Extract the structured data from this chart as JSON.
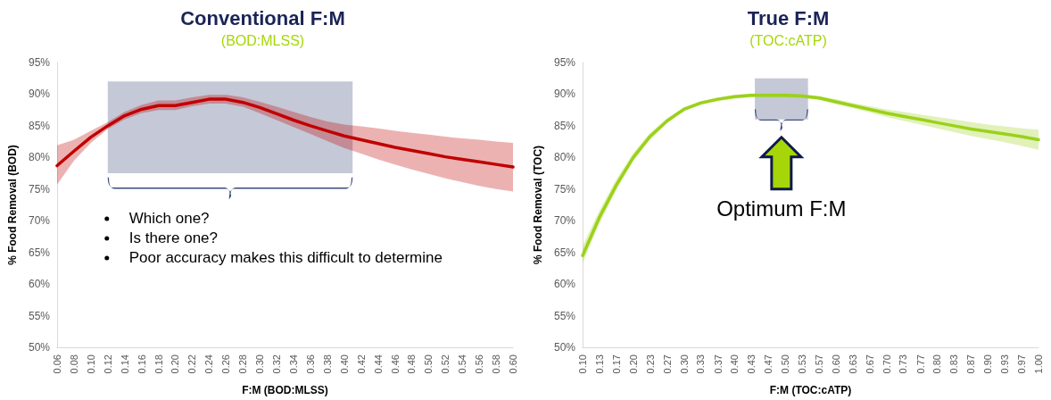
{
  "chart_data": [
    {
      "type": "line",
      "title": "Conventional F:M",
      "subtitle": "(BOD:MLSS)",
      "xlabel": "F:M (BOD:MLSS)",
      "ylabel": "% Food Removal (BOD)",
      "marker": "none",
      "x": [
        0.06,
        0.08,
        0.1,
        0.12,
        0.14,
        0.16,
        0.18,
        0.2,
        0.22,
        0.24,
        0.26,
        0.28,
        0.3,
        0.32,
        0.34,
        0.36,
        0.38,
        0.4,
        0.42,
        0.44,
        0.46,
        0.48,
        0.5,
        0.52,
        0.54,
        0.56,
        0.58,
        0.6
      ],
      "series": [
        {
          "color": "#c00000",
          "values": [
            78.7,
            81.0,
            83.2,
            85.0,
            86.6,
            87.6,
            88.2,
            88.2,
            88.7,
            89.2,
            89.2,
            88.7,
            87.9,
            86.9,
            85.9,
            85.0,
            84.2,
            83.4,
            82.8,
            82.2,
            81.6,
            81.1,
            80.6,
            80.1,
            79.7,
            79.3,
            78.9,
            78.5
          ],
          "lower": [
            75.7,
            79.5,
            82.3,
            84.5,
            86.0,
            87.0,
            87.5,
            87.5,
            88.1,
            88.5,
            88.5,
            88.0,
            87.0,
            85.9,
            84.8,
            83.7,
            82.6,
            81.5,
            80.6,
            79.7,
            78.9,
            78.1,
            77.4,
            76.7,
            76.1,
            75.5,
            75.0,
            74.6
          ],
          "upper": [
            81.9,
            82.8,
            84.2,
            85.6,
            87.2,
            88.3,
            89.0,
            89.0,
            89.5,
            89.9,
            89.9,
            89.5,
            88.8,
            88.0,
            87.2,
            86.4,
            85.7,
            85.2,
            84.9,
            84.6,
            84.2,
            83.9,
            83.6,
            83.3,
            83.0,
            82.8,
            82.5,
            82.3
          ]
        }
      ],
      "xlim": [
        0.06,
        0.6
      ],
      "xticks": [
        {
          "value": 0.06,
          "label": "0.06"
        },
        {
          "value": 0.08,
          "label": "0.08"
        },
        {
          "value": 0.1,
          "label": "0.10"
        },
        {
          "value": 0.12,
          "label": "0.12"
        },
        {
          "value": 0.14,
          "label": "0.14"
        },
        {
          "value": 0.16,
          "label": "0.16"
        },
        {
          "value": 0.18,
          "label": "0.18"
        },
        {
          "value": 0.2,
          "label": "0.20"
        },
        {
          "value": 0.22,
          "label": "0.22"
        },
        {
          "value": 0.24,
          "label": "0.24"
        },
        {
          "value": 0.26,
          "label": "0.26"
        },
        {
          "value": 0.28,
          "label": "0.28"
        },
        {
          "value": 0.3,
          "label": "0.30"
        },
        {
          "value": 0.32,
          "label": "0.32"
        },
        {
          "value": 0.34,
          "label": "0.34"
        },
        {
          "value": 0.36,
          "label": "0.36"
        },
        {
          "value": 0.38,
          "label": "0.38"
        },
        {
          "value": 0.4,
          "label": "0.40"
        },
        {
          "value": 0.42,
          "label": "0.42"
        },
        {
          "value": 0.44,
          "label": "0.44"
        },
        {
          "value": 0.46,
          "label": "0.46"
        },
        {
          "value": 0.48,
          "label": "0.48"
        },
        {
          "value": 0.5,
          "label": "0.50"
        },
        {
          "value": 0.52,
          "label": "0.52"
        },
        {
          "value": 0.54,
          "label": "0.54"
        },
        {
          "value": 0.56,
          "label": "0.56"
        },
        {
          "value": 0.58,
          "label": "0.58"
        },
        {
          "value": 0.6,
          "label": "0.60"
        }
      ],
      "ylim": [
        50,
        95
      ],
      "yticks": [
        {
          "value": 50,
          "label": "50%"
        },
        {
          "value": 55,
          "label": "55%"
        },
        {
          "value": 60,
          "label": "60%"
        },
        {
          "value": 65,
          "label": "65%"
        },
        {
          "value": 70,
          "label": "70%"
        },
        {
          "value": 75,
          "label": "75%"
        },
        {
          "value": 80,
          "label": "80%"
        },
        {
          "value": 85,
          "label": "85%"
        },
        {
          "value": 90,
          "label": "90%"
        },
        {
          "value": 95,
          "label": "95%"
        }
      ],
      "bands": [
        {
          "axis": "x",
          "from": 0.12,
          "to": 0.41,
          "color": "#c5c8d6"
        }
      ],
      "annotations": [
        "Which one?",
        "Is there one?",
        "Poor accuracy makes this difficult to determine"
      ]
    },
    {
      "type": "line",
      "title": "True F:M",
      "subtitle": "(TOC:cATP)",
      "xlabel": "F:M (TOC:cATP)",
      "ylabel": "% Food Removal (TOC)",
      "marker": "none",
      "x": [
        0.1,
        0.133,
        0.167,
        0.2,
        0.233,
        0.267,
        0.3,
        0.333,
        0.367,
        0.4,
        0.433,
        0.467,
        0.5,
        0.533,
        0.567,
        0.6,
        0.633,
        0.667,
        0.7,
        0.733,
        0.767,
        0.8,
        0.833,
        0.867,
        0.9,
        0.933,
        0.967,
        1.0
      ],
      "series": [
        {
          "color": "#9bd11a",
          "values": [
            64.5,
            70.5,
            75.7,
            80.0,
            83.3,
            85.8,
            87.6,
            88.6,
            89.2,
            89.6,
            89.8,
            89.8,
            89.8,
            89.7,
            89.4,
            88.8,
            88.2,
            87.6,
            87.0,
            86.5,
            86.0,
            85.5,
            85.0,
            84.5,
            84.1,
            83.7,
            83.3,
            82.8
          ],
          "lower": [
            63.3,
            69.5,
            74.9,
            79.4,
            82.8,
            85.4,
            87.3,
            88.3,
            88.9,
            89.3,
            89.5,
            89.5,
            89.5,
            89.4,
            89.1,
            88.4,
            87.8,
            87.1,
            86.4,
            85.8,
            85.2,
            84.6,
            84.0,
            83.4,
            82.9,
            82.4,
            81.8,
            81.2
          ],
          "upper": [
            66.0,
            71.6,
            76.6,
            80.7,
            83.9,
            86.2,
            87.9,
            88.9,
            89.5,
            89.9,
            90.1,
            90.1,
            90.1,
            90.0,
            89.7,
            89.2,
            88.6,
            88.1,
            87.6,
            87.2,
            86.8,
            86.4,
            86.0,
            85.6,
            85.2,
            84.9,
            84.6,
            84.4
          ]
        }
      ],
      "xlim": [
        0.1,
        1.0
      ],
      "xticks": [
        {
          "value": 0.1,
          "label": "0.10"
        },
        {
          "value": 0.133,
          "label": "0.13"
        },
        {
          "value": 0.167,
          "label": "0.17"
        },
        {
          "value": 0.2,
          "label": "0.20"
        },
        {
          "value": 0.233,
          "label": "0.23"
        },
        {
          "value": 0.267,
          "label": "0.27"
        },
        {
          "value": 0.3,
          "label": "0.30"
        },
        {
          "value": 0.333,
          "label": "0.33"
        },
        {
          "value": 0.367,
          "label": "0.37"
        },
        {
          "value": 0.4,
          "label": "0.40"
        },
        {
          "value": 0.433,
          "label": "0.43"
        },
        {
          "value": 0.467,
          "label": "0.47"
        },
        {
          "value": 0.5,
          "label": "0.50"
        },
        {
          "value": 0.533,
          "label": "0.53"
        },
        {
          "value": 0.567,
          "label": "0.57"
        },
        {
          "value": 0.6,
          "label": "0.60"
        },
        {
          "value": 0.633,
          "label": "0.63"
        },
        {
          "value": 0.667,
          "label": "0.67"
        },
        {
          "value": 0.7,
          "label": "0.70"
        },
        {
          "value": 0.733,
          "label": "0.73"
        },
        {
          "value": 0.767,
          "label": "0.77"
        },
        {
          "value": 0.8,
          "label": "0.80"
        },
        {
          "value": 0.833,
          "label": "0.83"
        },
        {
          "value": 0.867,
          "label": "0.87"
        },
        {
          "value": 0.9,
          "label": "0.90"
        },
        {
          "value": 0.933,
          "label": "0.93"
        },
        {
          "value": 0.967,
          "label": "0.97"
        },
        {
          "value": 1.0,
          "label": "1.00"
        }
      ],
      "ylim": [
        50,
        95
      ],
      "yticks": [
        {
          "value": 50,
          "label": "50%"
        },
        {
          "value": 55,
          "label": "55%"
        },
        {
          "value": 60,
          "label": "60%"
        },
        {
          "value": 65,
          "label": "65%"
        },
        {
          "value": 70,
          "label": "70%"
        },
        {
          "value": 75,
          "label": "75%"
        },
        {
          "value": 80,
          "label": "80%"
        },
        {
          "value": 85,
          "label": "85%"
        },
        {
          "value": 90,
          "label": "90%"
        },
        {
          "value": 95,
          "label": "95%"
        }
      ],
      "bands": [
        {
          "axis": "x",
          "from": 0.44,
          "to": 0.545,
          "color": "#c5c8d6"
        }
      ],
      "annotations": [
        "Optimum F:M"
      ]
    }
  ]
}
